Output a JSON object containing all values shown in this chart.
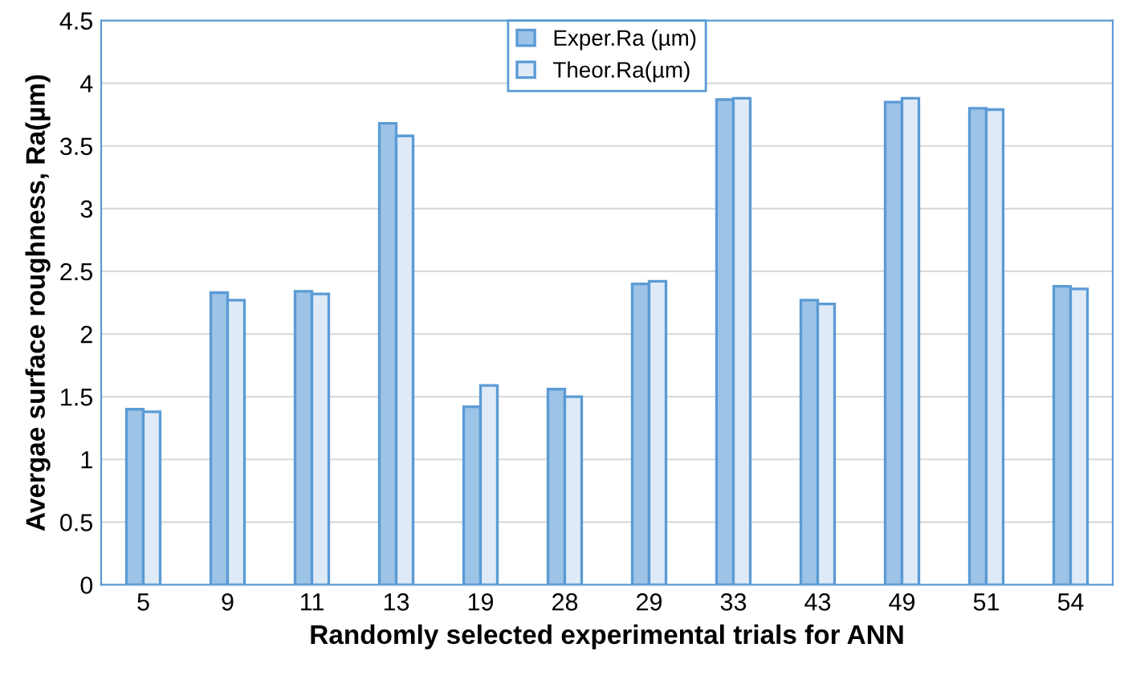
{
  "chart_data": {
    "type": "bar",
    "xlabel": "Randomly selected experimental trials for ANN",
    "ylabel": "Avergae surface roughness, Ra(µm)",
    "categories": [
      "5",
      "9",
      "11",
      "13",
      "19",
      "28",
      "29",
      "33",
      "43",
      "49",
      "51",
      "54"
    ],
    "series": [
      {
        "name": "Exper.Ra (µm)",
        "color": "#9dc3e6",
        "values": [
          1.4,
          2.33,
          2.34,
          3.68,
          1.42,
          1.56,
          2.4,
          3.87,
          2.27,
          3.85,
          3.8,
          2.38
        ]
      },
      {
        "name": "Theor.Ra(µm)",
        "color": "#deebf7",
        "values": [
          1.38,
          2.27,
          2.32,
          3.58,
          1.59,
          1.5,
          2.42,
          3.88,
          2.24,
          3.88,
          3.79,
          2.36
        ]
      }
    ],
    "ylim": [
      0,
      4.5
    ],
    "yticks": [
      0,
      0.5,
      1,
      1.5,
      2,
      2.5,
      3,
      3.5,
      4,
      4.5
    ],
    "grid": "y",
    "legend": "top"
  }
}
